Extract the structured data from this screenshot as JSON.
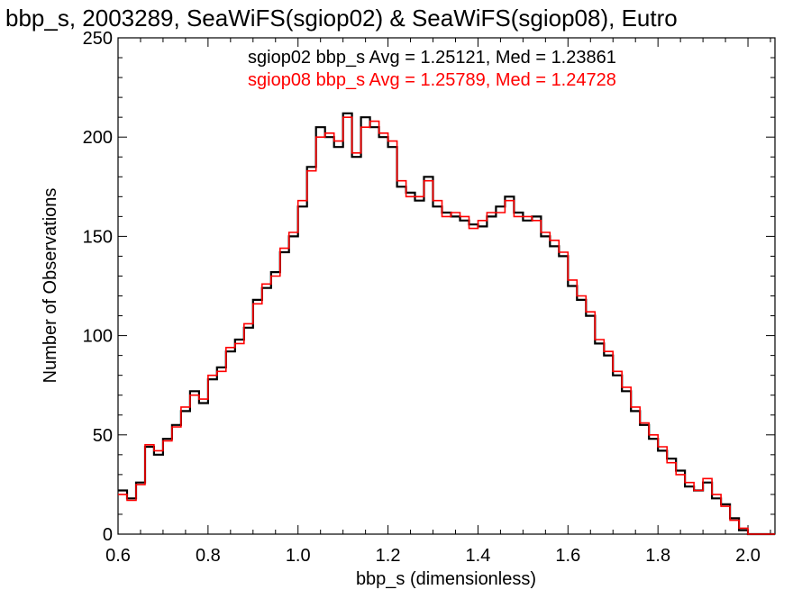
{
  "chart_data": {
    "type": "line",
    "title": "bbp_s, 2003289, SeaWiFS(sgiop02) & SeaWiFS(sgiop08), Eutro",
    "xlabel": "bbp_s (dimensionless)",
    "ylabel": "Number of Observations",
    "xlim": [
      0.6,
      2.06
    ],
    "ylim": [
      0,
      250
    ],
    "x_ticks": [
      "0.6",
      "0.8",
      "1.0",
      "1.2",
      "1.4",
      "1.6",
      "1.8",
      "2.0"
    ],
    "y_ticks": [
      "0",
      "50",
      "100",
      "150",
      "200",
      "250"
    ],
    "grid": false,
    "step": "histogram",
    "annotations": [
      {
        "text": "sgiop02 bbp_s Avg = 1.25121, Med = 1.23861",
        "color": "#000000"
      },
      {
        "text": "sgiop08 bbp_s Avg = 1.25789, Med = 1.24728",
        "color": "#ff0000"
      }
    ],
    "x": [
      0.6,
      0.62,
      0.64,
      0.66,
      0.68,
      0.7,
      0.72,
      0.74,
      0.76,
      0.78,
      0.8,
      0.82,
      0.84,
      0.86,
      0.88,
      0.9,
      0.92,
      0.94,
      0.96,
      0.98,
      1.0,
      1.02,
      1.04,
      1.06,
      1.08,
      1.1,
      1.12,
      1.14,
      1.16,
      1.18,
      1.2,
      1.22,
      1.24,
      1.26,
      1.28,
      1.3,
      1.32,
      1.34,
      1.36,
      1.38,
      1.4,
      1.42,
      1.44,
      1.46,
      1.48,
      1.5,
      1.52,
      1.54,
      1.56,
      1.58,
      1.6,
      1.62,
      1.64,
      1.66,
      1.68,
      1.7,
      1.72,
      1.74,
      1.76,
      1.78,
      1.8,
      1.82,
      1.84,
      1.86,
      1.88,
      1.9,
      1.92,
      1.94,
      1.96,
      1.98,
      2.0,
      2.02,
      2.04
    ],
    "series": [
      {
        "color": "#000000",
        "values": [
          22,
          18,
          26,
          44,
          40,
          48,
          55,
          62,
          72,
          66,
          78,
          84,
          92,
          98,
          104,
          118,
          124,
          132,
          142,
          150,
          165,
          185,
          205,
          200,
          195,
          212,
          190,
          210,
          205,
          200,
          195,
          175,
          172,
          168,
          180,
          165,
          162,
          160,
          158,
          156,
          155,
          160,
          165,
          170,
          162,
          158,
          160,
          150,
          145,
          140,
          125,
          118,
          110,
          96,
          90,
          80,
          72,
          62,
          55,
          48,
          42,
          38,
          32,
          24,
          22,
          26,
          18,
          15,
          8,
          2,
          0,
          0,
          0
        ]
      },
      {
        "color": "#ff0000",
        "values": [
          20,
          17,
          25,
          45,
          42,
          47,
          54,
          64,
          70,
          68,
          80,
          82,
          94,
          96,
          106,
          116,
          126,
          130,
          144,
          152,
          168,
          183,
          200,
          202,
          198,
          210,
          192,
          205,
          208,
          202,
          198,
          178,
          170,
          170,
          178,
          168,
          160,
          162,
          160,
          154,
          158,
          162,
          162,
          168,
          160,
          160,
          158,
          152,
          148,
          142,
          128,
          120,
          112,
          98,
          92,
          82,
          74,
          64,
          56,
          50,
          44,
          36,
          30,
          26,
          22,
          28,
          20,
          14,
          7,
          3,
          0,
          0,
          0
        ]
      }
    ]
  }
}
